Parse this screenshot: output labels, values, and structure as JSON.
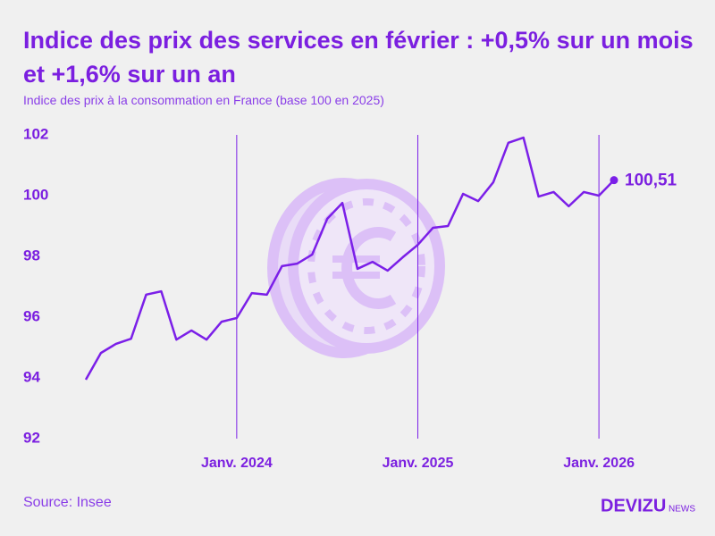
{
  "chart_data": {
    "type": "line",
    "title": "Indice des prix des services en février : +0,5% sur un mois et +1,6% sur un an",
    "subtitle": "Indice des prix à la consommation en France (base 100 en 2025)",
    "categories": [
      null,
      null,
      null,
      null,
      null,
      null,
      null,
      null,
      null,
      null,
      "Janv. 2024",
      null,
      null,
      null,
      null,
      null,
      null,
      null,
      null,
      null,
      null,
      null,
      "Janv. 2025",
      null,
      null,
      null,
      null,
      null,
      null,
      null,
      null,
      null,
      null,
      null,
      "Janv. 2026",
      null
    ],
    "values": [
      93.94,
      94.82,
      95.12,
      95.29,
      96.74,
      96.85,
      95.26,
      95.56,
      95.26,
      95.85,
      95.97,
      96.79,
      96.74,
      97.68,
      97.76,
      98.06,
      99.24,
      99.76,
      97.59,
      97.82,
      97.53,
      97.97,
      98.38,
      98.94,
      99.0,
      100.06,
      99.82,
      100.44,
      101.74,
      101.91,
      99.97,
      100.12,
      99.65,
      100.12,
      100.0,
      100.51
    ],
    "value_labels": [
      null,
      null,
      null,
      null,
      null,
      null,
      null,
      null,
      null,
      null,
      null,
      null,
      null,
      null,
      null,
      null,
      null,
      null,
      null,
      null,
      null,
      null,
      null,
      null,
      null,
      null,
      null,
      null,
      null,
      null,
      null,
      null,
      null,
      null,
      null,
      "100,51"
    ],
    "color": "#7b1fe8",
    "ylim": [
      92,
      102
    ],
    "yticks": [
      92,
      94,
      96,
      98,
      100,
      102
    ],
    "source": "Source: Insee",
    "brand": "DEVIZU",
    "brand_suffix": "NEWS"
  }
}
